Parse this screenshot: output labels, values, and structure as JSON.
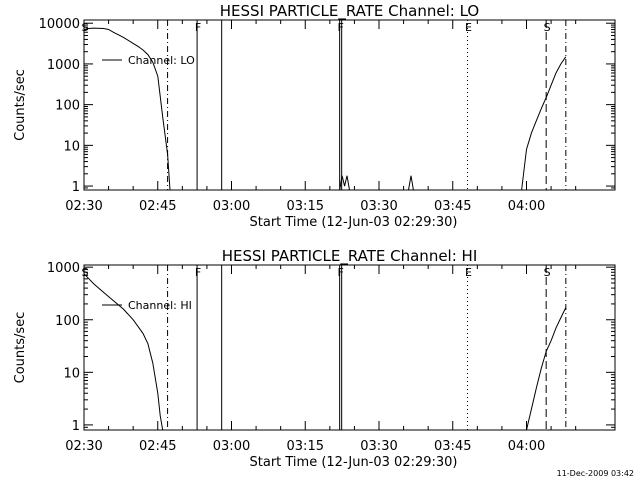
{
  "chart_data": [
    {
      "type": "line",
      "title": "HESSI PARTICLE_RATE Channel: LO",
      "xlabel": "Start Time (12-Jun-03 02:29:30)",
      "ylabel": "Counts/sec",
      "y_scale": "log",
      "ylim": [
        0.8,
        12000
      ],
      "xlim": [
        "02:30",
        "04:18"
      ],
      "y_ticks": [
        1,
        10,
        100,
        1000,
        10000
      ],
      "y_tick_labels": [
        "1",
        "10",
        "100",
        "1000",
        "10000"
      ],
      "x_ticks": [
        "02:30",
        "02:45",
        "03:00",
        "03:15",
        "03:30",
        "03:45",
        "04:00"
      ],
      "legend": "Channel: LO",
      "legend_placement": "upper-left",
      "grid": false,
      "series": [
        {
          "points": [
            [
              "02:30",
              7000
            ],
            [
              "02:31",
              7400
            ],
            [
              "02:32",
              7600
            ],
            [
              "02:34",
              7400
            ],
            [
              "02:35",
              7000
            ],
            [
              "02:36",
              6000
            ],
            [
              "02:38",
              4500
            ],
            [
              "02:40",
              3200
            ],
            [
              "02:41",
              2700
            ],
            [
              "02:42",
              2200
            ],
            [
              "02:43",
              1700
            ],
            [
              "02:44",
              1100
            ],
            [
              "02:45",
              500
            ],
            [
              "02:46",
              50
            ],
            [
              "02:47",
              6
            ],
            [
              "02:47:30",
              0.8
            ]
          ]
        },
        {
          "points": [
            [
              "03:22",
              0.8
            ],
            [
              "03:22:30",
              1.8
            ],
            [
              "03:23",
              1.0
            ],
            [
              "03:23:30",
              1.8
            ],
            [
              "03:24",
              0.8
            ]
          ]
        },
        {
          "points": [
            [
              "03:36",
              0.8
            ],
            [
              "03:36:30",
              1.8
            ],
            [
              "03:37",
              0.8
            ]
          ]
        },
        {
          "points": [
            [
              "03:59",
              0.8
            ],
            [
              "04:00",
              8
            ],
            [
              "04:01",
              20
            ],
            [
              "04:02",
              40
            ],
            [
              "04:03",
              80
            ],
            [
              "04:04",
              150
            ],
            [
              "04:05",
              300
            ],
            [
              "04:06",
              600
            ],
            [
              "04:07",
              1000
            ],
            [
              "04:08",
              1500
            ]
          ]
        }
      ],
      "event_markers": [
        {
          "label": "S",
          "time": "02:30",
          "style": "dashed"
        },
        {
          "label": "",
          "time": "02:47",
          "style": "dash-dot"
        },
        {
          "label": "F",
          "time": "02:53",
          "style": "solid"
        },
        {
          "label": "",
          "time": "02:58",
          "style": "solid"
        },
        {
          "label": "F",
          "time": "03:22",
          "style": "solid-double"
        },
        {
          "label": "E",
          "time": "03:48",
          "style": "dotted"
        },
        {
          "label": "S",
          "time": "04:04",
          "style": "dashed"
        },
        {
          "label": "",
          "time": "04:08",
          "style": "dash-dot"
        }
      ]
    },
    {
      "type": "line",
      "title": "HESSI PARTICLE_RATE Channel: HI",
      "xlabel": "Start Time (12-Jun-03 02:29:30)",
      "ylabel": "Counts/sec",
      "y_scale": "log",
      "ylim": [
        0.8,
        1100
      ],
      "xlim": [
        "02:30",
        "04:18"
      ],
      "y_ticks": [
        1,
        10,
        100,
        1000
      ],
      "y_tick_labels": [
        "1",
        "10",
        "100",
        "1000"
      ],
      "x_ticks": [
        "02:30",
        "02:45",
        "03:00",
        "03:15",
        "03:30",
        "03:45",
        "04:00"
      ],
      "legend": "Channel: HI",
      "legend_placement": "upper-left",
      "grid": false,
      "series": [
        {
          "points": [
            [
              "02:30",
              750
            ],
            [
              "02:31",
              600
            ],
            [
              "02:32",
              480
            ],
            [
              "02:34",
              330
            ],
            [
              "02:36",
              230
            ],
            [
              "02:38",
              160
            ],
            [
              "02:40",
              100
            ],
            [
              "02:42",
              55
            ],
            [
              "02:43",
              35
            ],
            [
              "02:44",
              15
            ],
            [
              "02:45",
              4
            ],
            [
              "02:45:30",
              1.5
            ],
            [
              "02:46",
              0.8
            ]
          ]
        },
        {
          "points": [
            [
              "04:00",
              0.8
            ],
            [
              "04:01",
              2
            ],
            [
              "04:02",
              5
            ],
            [
              "04:03",
              12
            ],
            [
              "04:04",
              25
            ],
            [
              "04:05",
              40
            ],
            [
              "04:06",
              70
            ],
            [
              "04:07",
              110
            ],
            [
              "04:08",
              170
            ]
          ]
        }
      ],
      "event_markers": [
        {
          "label": "S",
          "time": "02:30",
          "style": "dashed"
        },
        {
          "label": "",
          "time": "02:47",
          "style": "dash-dot"
        },
        {
          "label": "F",
          "time": "02:53",
          "style": "solid"
        },
        {
          "label": "",
          "time": "02:58",
          "style": "solid"
        },
        {
          "label": "F",
          "time": "03:22",
          "style": "solid-double"
        },
        {
          "label": "E",
          "time": "03:48",
          "style": "dotted"
        },
        {
          "label": "S",
          "time": "04:04",
          "style": "dashed"
        },
        {
          "label": "",
          "time": "04:08",
          "style": "dash-dot"
        }
      ]
    }
  ],
  "footer": {
    "timestamp": "11-Dec-2009 03:42"
  }
}
